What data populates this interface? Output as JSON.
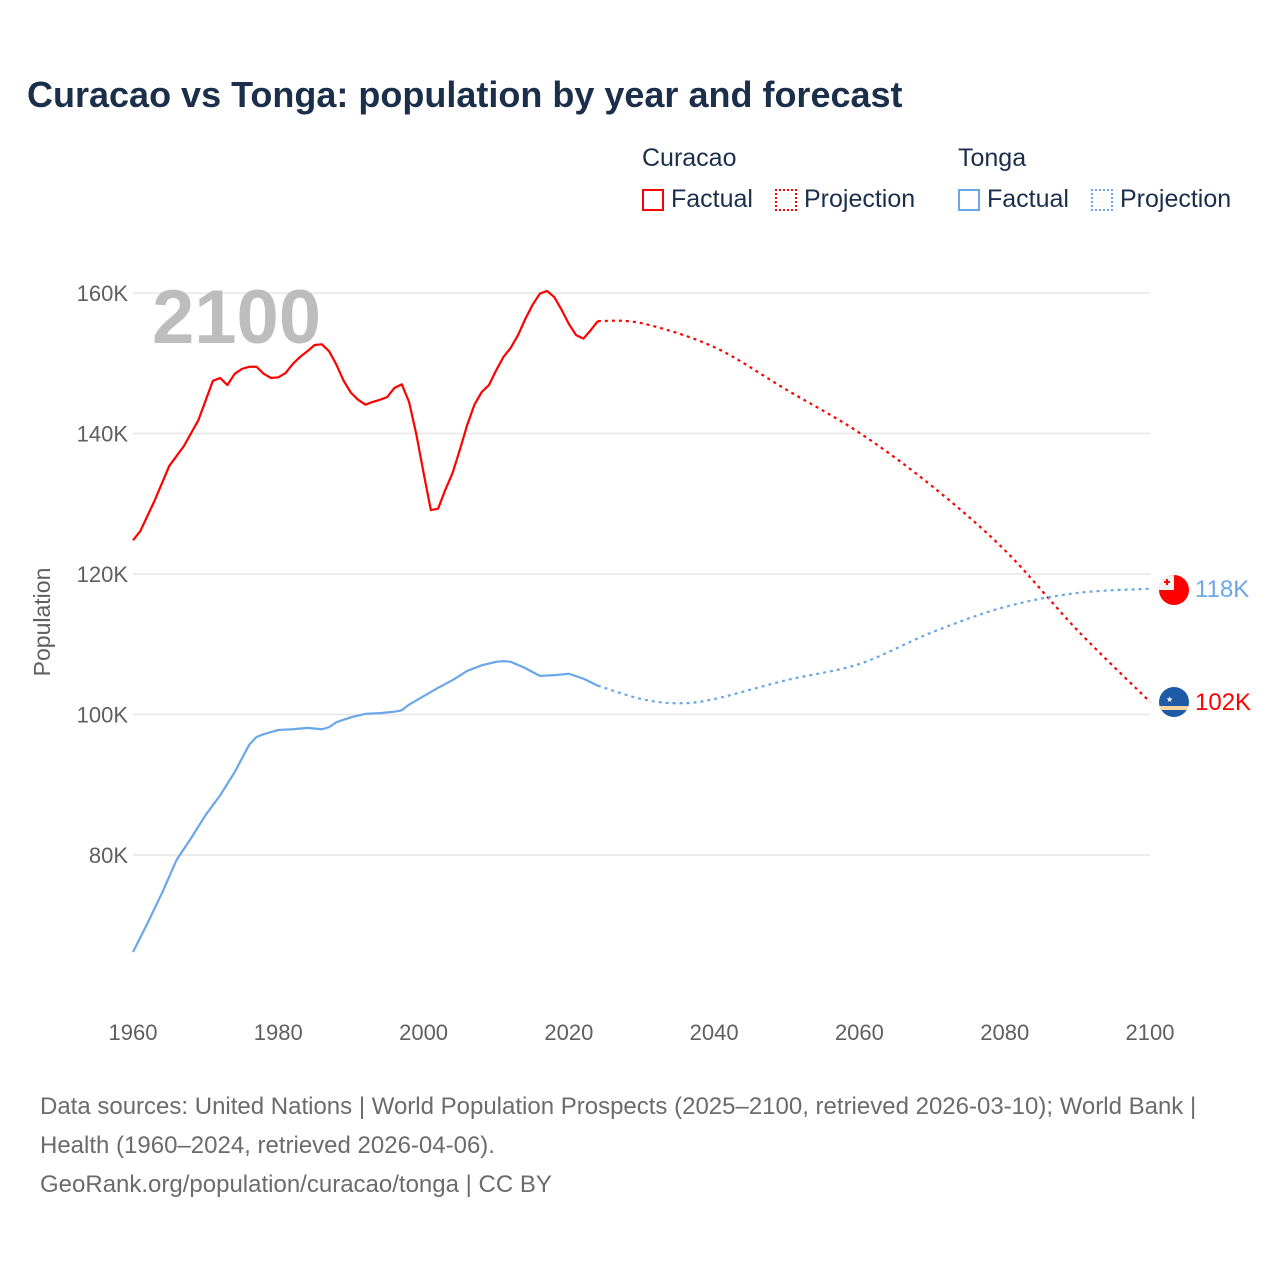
{
  "title": "Curacao vs Tonga: population by year and forecast",
  "legend": {
    "groups": [
      {
        "name": "Curacao",
        "factual": "Factual",
        "projection": "Projection",
        "color": "#ff0000"
      },
      {
        "name": "Tonga",
        "factual": "Factual",
        "projection": "Projection",
        "color": "#6aa7e8"
      }
    ]
  },
  "year_watermark": "2100",
  "footer": {
    "sources": "Data sources: United Nations | World Population Prospects (2025–2100, retrieved 2026-03-10); World Bank | Health (1960–2024, retrieved 2026-04-06).",
    "link": "GeoRank.org/population/curacao/tonga | CC BY"
  },
  "chart_data": {
    "type": "line",
    "title": "Curacao vs Tonga: population by year and forecast",
    "xlabel": "",
    "ylabel": "Population",
    "xlim": [
      1960,
      2100
    ],
    "ylim": [
      65000,
      160000
    ],
    "x_ticks": [
      1960,
      1980,
      2000,
      2020,
      2040,
      2060,
      2080,
      2100
    ],
    "x_tick_labels": [
      "1960",
      "1980",
      "2000",
      "2020",
      "2040",
      "2060",
      "2080",
      "2100"
    ],
    "y_ticks": [
      80000,
      100000,
      120000,
      140000,
      160000
    ],
    "y_tick_labels": [
      "80K",
      "100K",
      "120K",
      "140K",
      "160K"
    ],
    "grid": true,
    "legend_position": "top-right",
    "series": [
      {
        "name": "Curacao",
        "kind": "factual",
        "color": "#ff0000",
        "x": [
          1960,
          1961,
          1963,
          1965,
          1967,
          1969,
          1971,
          1972,
          1973,
          1974,
          1975,
          1976,
          1977,
          1978,
          1979,
          1980,
          1981,
          1982,
          1983,
          1984,
          1985,
          1986,
          1987,
          1988,
          1989,
          1990,
          1991,
          1992,
          1993,
          1994,
          1995,
          1996,
          1997,
          1998,
          1999,
          2000,
          2001,
          2002,
          2003,
          2004,
          2005,
          2006,
          2007,
          2008,
          2009,
          2010,
          2011,
          2012,
          2013,
          2014,
          2015,
          2016,
          2017,
          2018,
          2019,
          2020,
          2021,
          2022,
          2023,
          2024
        ],
        "y": [
          124800,
          126100,
          130500,
          135400,
          138200,
          141900,
          147500,
          147900,
          146900,
          148500,
          149200,
          149500,
          149500,
          148500,
          147900,
          148000,
          148600,
          149900,
          150900,
          151700,
          152600,
          152700,
          151700,
          149800,
          147500,
          145800,
          144800,
          144100,
          144500,
          144800,
          145200,
          146500,
          147000,
          144500,
          139900,
          134400,
          129100,
          129300,
          132000,
          134400,
          137700,
          141200,
          144100,
          145900,
          146900,
          149000,
          150900,
          152200,
          154000,
          156300,
          158300,
          159900,
          160300,
          159400,
          157600,
          155600,
          154000,
          153500,
          154700,
          156000
        ]
      },
      {
        "name": "Curacao",
        "kind": "projection",
        "color": "#ff0000",
        "x": [
          2024,
          2030,
          2040,
          2050,
          2060,
          2070,
          2080,
          2090,
          2100
        ],
        "y": [
          156000,
          155700,
          152300,
          146200,
          140100,
          132500,
          123400,
          112000,
          101800
        ]
      },
      {
        "name": "Tonga",
        "kind": "factual",
        "color": "#6aa7e8",
        "x": [
          1960,
          1962,
          1964,
          1966,
          1968,
          1970,
          1972,
          1974,
          1976,
          1977,
          1978,
          1980,
          1982,
          1984,
          1986,
          1987,
          1988,
          1990,
          1992,
          1994,
          1996,
          1997,
          1998,
          2000,
          2002,
          2004,
          2006,
          2008,
          2010,
          2011,
          2012,
          2014,
          2016,
          2018,
          2020,
          2022,
          2024
        ],
        "y": [
          66200,
          70300,
          74600,
          79300,
          82400,
          85700,
          88500,
          91800,
          95700,
          96800,
          97200,
          97800,
          97900,
          98100,
          97900,
          98200,
          98900,
          99600,
          100100,
          100200,
          100400,
          100600,
          101400,
          102600,
          103800,
          104900,
          106200,
          107000,
          107500,
          107600,
          107500,
          106600,
          105500,
          105600,
          105800,
          105100,
          104100
        ]
      },
      {
        "name": "Tonga",
        "kind": "projection",
        "color": "#6aa7e8",
        "x": [
          2024,
          2030,
          2035,
          2040,
          2050,
          2060,
          2070,
          2080,
          2090,
          2100
        ],
        "y": [
          104100,
          102200,
          101600,
          102200,
          104900,
          107200,
          111700,
          115300,
          117300,
          117900
        ]
      }
    ],
    "end_labels": [
      {
        "series": "Tonga",
        "text": "118K",
        "value": 117900,
        "color": "#6aa7e8"
      },
      {
        "series": "Curacao",
        "text": "102K",
        "value": 101800,
        "color": "#ff0000"
      }
    ]
  }
}
